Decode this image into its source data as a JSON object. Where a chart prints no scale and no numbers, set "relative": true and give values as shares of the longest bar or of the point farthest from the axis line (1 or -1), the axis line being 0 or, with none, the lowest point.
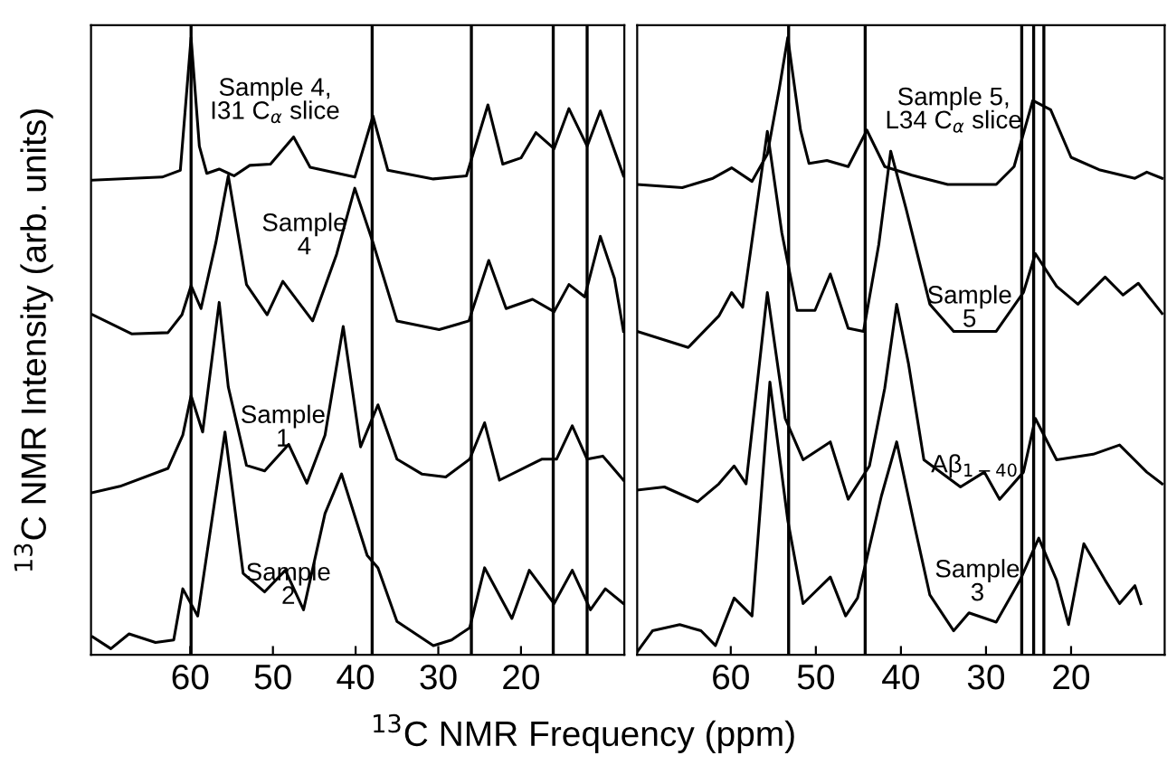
{
  "chart_data": [
    {
      "type": "line",
      "relative": true,
      "xlabel": "$^{13}$C NMR Frequency (ppm)",
      "ylabel": "$^{13}$C NMR Intensity (arb. units)",
      "xlim": [
        72,
        7.5
      ],
      "xticks": [
        60,
        50,
        40,
        30,
        20
      ],
      "grid": false,
      "legend": false,
      "line_style": "solid",
      "marker": "none",
      "series": [
        {
          "color": "#000000",
          "x": [
            71.8,
            63.4,
            61.2,
            59.9,
            58.9,
            58.0,
            56.5,
            54.7,
            52.8,
            50.3,
            47.5,
            45.5,
            40.1,
            37.9,
            36.1,
            30.6,
            26.6,
            24.0,
            22.2,
            20.0,
            18.2,
            16.0,
            14.2,
            12.0,
            10.4,
            7.6
          ],
          "values": [
            0.769,
            0.774,
            0.785,
            1.0,
            0.824,
            0.78,
            0.787,
            0.776,
            0.793,
            0.795,
            0.839,
            0.79,
            0.774,
            0.873,
            0.785,
            0.771,
            0.776,
            0.891,
            0.795,
            0.805,
            0.846,
            0.82,
            0.885,
            0.824,
            0.881,
            0.776
          ]
        },
        {
          "color": "#000000",
          "x": [
            71.8,
            67.1,
            62.7,
            61.0,
            59.9,
            58.7,
            56.9,
            55.4,
            53.2,
            50.7,
            48.8,
            45.2,
            42.3,
            40.1,
            37.9,
            35.0,
            29.9,
            26.3,
            23.9,
            21.8,
            18.6,
            16.0,
            14.2,
            12.3,
            10.4,
            8.7,
            7.6
          ],
          "values": [
            0.551,
            0.52,
            0.522,
            0.551,
            0.598,
            0.561,
            0.668,
            0.776,
            0.6,
            0.551,
            0.605,
            0.541,
            0.649,
            0.756,
            0.668,
            0.541,
            0.527,
            0.541,
            0.639,
            0.561,
            0.576,
            0.556,
            0.6,
            0.58,
            0.678,
            0.61,
            0.524
          ]
        },
        {
          "color": "#000000",
          "x": [
            71.8,
            68.5,
            62.7,
            60.9,
            59.9,
            58.5,
            56.5,
            55.4,
            53.2,
            51.0,
            48.1,
            45.9,
            43.7,
            41.5,
            39.4,
            37.3,
            35.0,
            32.0,
            29.1,
            26.2,
            24.4,
            22.6,
            17.5,
            15.7,
            13.8,
            12.0,
            10.1,
            7.6
          ],
          "values": [
            0.263,
            0.273,
            0.302,
            0.356,
            0.42,
            0.361,
            0.571,
            0.434,
            0.307,
            0.298,
            0.341,
            0.278,
            0.356,
            0.532,
            0.337,
            0.405,
            0.317,
            0.293,
            0.288,
            0.317,
            0.376,
            0.283,
            0.317,
            0.317,
            0.371,
            0.317,
            0.322,
            0.283
          ]
        },
        {
          "color": "#000000",
          "x": [
            71.8,
            69.6,
            67.4,
            64.2,
            62.0,
            60.9,
            59.1,
            55.8,
            53.6,
            51.0,
            48.5,
            46.3,
            43.7,
            41.7,
            38.6,
            37.3,
            35.0,
            30.6,
            28.4,
            26.2,
            24.4,
            21.1,
            19.0,
            16.0,
            13.8,
            11.6,
            9.8,
            7.6
          ],
          "values": [
            0.029,
            0.01,
            0.034,
            0.02,
            0.024,
            0.107,
            0.063,
            0.361,
            0.132,
            0.102,
            0.137,
            0.073,
            0.229,
            0.293,
            0.161,
            0.141,
            0.054,
            0.015,
            0.024,
            0.044,
            0.141,
            0.059,
            0.137,
            0.083,
            0.137,
            0.073,
            0.107,
            0.083
          ]
        }
      ],
      "ref_lines": [
        {
          "axis": "x",
          "value": 59.9,
          "color": "#000000"
        },
        {
          "axis": "x",
          "value": 38.0,
          "color": "#000000"
        },
        {
          "axis": "x",
          "value": 26.0,
          "color": "#000000"
        },
        {
          "axis": "x",
          "value": 16.1,
          "color": "#000000"
        },
        {
          "axis": "x",
          "value": 12.0,
          "color": "#000000"
        }
      ],
      "annotations": [
        "Sample 4,\nI31 C$_{α}$ slice",
        "Sample\n4",
        "Sample\n1",
        "Sample\n2"
      ]
    },
    {
      "type": "line",
      "relative": true,
      "xlim": [
        71,
        9
      ],
      "xticks": [
        60,
        50,
        40,
        30,
        20
      ],
      "grid": false,
      "legend": false,
      "line_style": "solid",
      "marker": "none",
      "series": [
        {
          "color": "#000000",
          "x": [
            71.0,
            65.7,
            62.1,
            59.9,
            57.5,
            55.7,
            54.3,
            53.3,
            51.8,
            50.8,
            48.7,
            46.2,
            44.0,
            41.9,
            38.7,
            34.5,
            28.8,
            26.7,
            24.5,
            22.4,
            20.0,
            16.7,
            12.5,
            11.1,
            9.3
          ],
          "values": [
            0.762,
            0.757,
            0.772,
            0.789,
            0.767,
            0.811,
            0.917,
            1.0,
            0.85,
            0.796,
            0.801,
            0.791,
            0.85,
            0.791,
            0.777,
            0.762,
            0.762,
            0.791,
            0.898,
            0.883,
            0.806,
            0.786,
            0.772,
            0.782,
            0.772
          ]
        },
        {
          "color": "#000000",
          "x": [
            71.0,
            65.0,
            61.4,
            59.9,
            58.6,
            55.7,
            54.0,
            52.2,
            50.1,
            48.3,
            46.2,
            44.4,
            42.6,
            41.2,
            39.4,
            36.6,
            33.8,
            28.8,
            25.6,
            24.2,
            21.7,
            19.2,
            16.0,
            13.9,
            12.1,
            9.3
          ],
          "values": [
            0.524,
            0.498,
            0.549,
            0.587,
            0.563,
            0.848,
            0.684,
            0.558,
            0.558,
            0.617,
            0.529,
            0.524,
            0.665,
            0.816,
            0.723,
            0.568,
            0.524,
            0.524,
            0.587,
            0.65,
            0.597,
            0.568,
            0.612,
            0.583,
            0.602,
            0.553
          ]
        },
        {
          "color": "#000000",
          "x": [
            71.0,
            67.8,
            63.9,
            61.4,
            59.6,
            58.2,
            55.7,
            53.6,
            51.5,
            48.3,
            46.2,
            43.7,
            41.9,
            40.5,
            39.1,
            37.3,
            33.0,
            30.2,
            28.4,
            25.6,
            24.2,
            21.7,
            17.4,
            14.3,
            11.1,
            9.3
          ],
          "values": [
            0.267,
            0.272,
            0.248,
            0.277,
            0.306,
            0.277,
            0.587,
            0.383,
            0.316,
            0.345,
            0.252,
            0.306,
            0.432,
            0.568,
            0.471,
            0.316,
            0.272,
            0.296,
            0.252,
            0.296,
            0.383,
            0.316,
            0.325,
            0.34,
            0.296,
            0.277
          ]
        },
        {
          "color": "#000000",
          "x": [
            71.0,
            69.2,
            66.0,
            63.5,
            61.8,
            59.6,
            57.5,
            55.4,
            53.3,
            51.5,
            48.3,
            46.5,
            45.1,
            42.3,
            40.5,
            38.4,
            36.6,
            33.8,
            32.0,
            28.8,
            26.0,
            23.8,
            21.7,
            20.3,
            18.5,
            16.0,
            14.3,
            12.5,
            11.8
          ],
          "values": [
            0.005,
            0.039,
            0.049,
            0.039,
            0.015,
            0.092,
            0.063,
            0.442,
            0.218,
            0.083,
            0.126,
            0.063,
            0.092,
            0.257,
            0.345,
            0.209,
            0.097,
            0.039,
            0.068,
            0.053,
            0.121,
            0.189,
            0.121,
            0.049,
            0.18,
            0.121,
            0.083,
            0.112,
            0.083
          ]
        }
      ],
      "ref_lines": [
        {
          "axis": "x",
          "value": 53.2,
          "color": "#000000"
        },
        {
          "axis": "x",
          "value": 44.2,
          "color": "#000000"
        },
        {
          "axis": "x",
          "value": 25.8,
          "color": "#000000"
        },
        {
          "axis": "x",
          "value": 24.4,
          "color": "#000000"
        },
        {
          "axis": "x",
          "value": 23.2,
          "color": "#000000"
        }
      ],
      "annotations": [
        "Sample 5,\nL34 C$_{α}$ slice",
        "Sample\n5",
        "Aβ$_{1−40}$",
        "Sample\n3"
      ]
    }
  ]
}
